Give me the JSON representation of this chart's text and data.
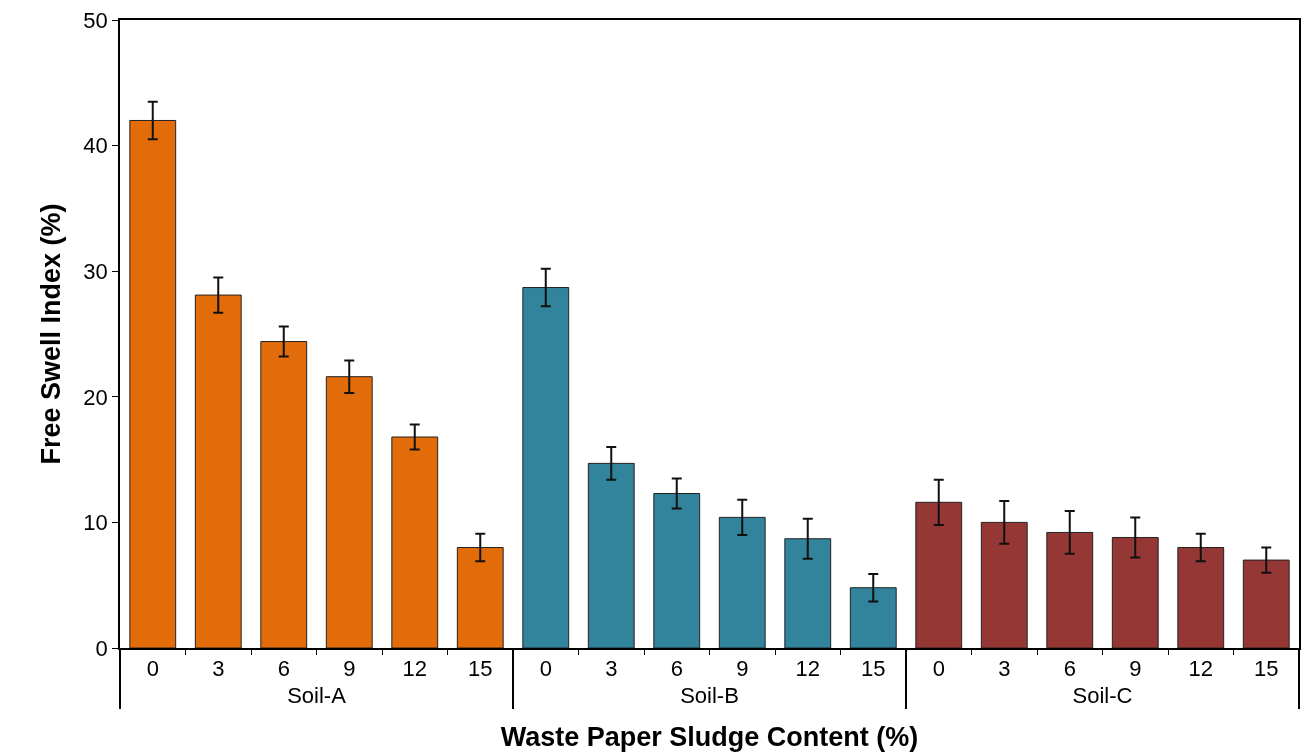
{
  "chart_data": {
    "type": "bar",
    "xlabel": "Waste Paper Sludge Content (%)",
    "ylabel": "Free Swell Index (%)",
    "categories": [
      "0",
      "3",
      "6",
      "9",
      "12",
      "15",
      "0",
      "3",
      "6",
      "9",
      "12",
      "15",
      "0",
      "3",
      "6",
      "9",
      "12",
      "15"
    ],
    "series": [
      {
        "name": "Soil-A",
        "color": "#e36c0a",
        "values": [
          42.0,
          28.1,
          24.4,
          21.6,
          16.8,
          8.0,
          null,
          null,
          null,
          null,
          null,
          null,
          null,
          null,
          null,
          null,
          null,
          null
        ],
        "errors": [
          1.5,
          1.4,
          1.2,
          1.3,
          1.0,
          1.1,
          null,
          null,
          null,
          null,
          null,
          null,
          null,
          null,
          null,
          null,
          null,
          null
        ]
      },
      {
        "name": "Soil-B",
        "color": "#31849b",
        "values": [
          null,
          null,
          null,
          null,
          null,
          null,
          28.7,
          14.7,
          12.3,
          10.4,
          8.7,
          4.8,
          null,
          null,
          null,
          null,
          null,
          null
        ],
        "errors": [
          null,
          null,
          null,
          null,
          null,
          null,
          1.5,
          1.3,
          1.2,
          1.4,
          1.6,
          1.1,
          null,
          null,
          null,
          null,
          null,
          null
        ]
      },
      {
        "name": "Soil-C",
        "color": "#953735",
        "values": [
          null,
          null,
          null,
          null,
          null,
          null,
          null,
          null,
          null,
          null,
          null,
          null,
          11.6,
          10.0,
          9.2,
          8.8,
          8.0,
          7.0
        ],
        "errors": [
          null,
          null,
          null,
          null,
          null,
          null,
          null,
          null,
          null,
          null,
          null,
          null,
          1.8,
          1.7,
          1.7,
          1.6,
          1.1,
          1.0
        ]
      }
    ],
    "ylim": [
      0,
      50
    ],
    "yticks": [
      0,
      10,
      20,
      30,
      40,
      50
    ],
    "grid": false,
    "legend": false
  }
}
